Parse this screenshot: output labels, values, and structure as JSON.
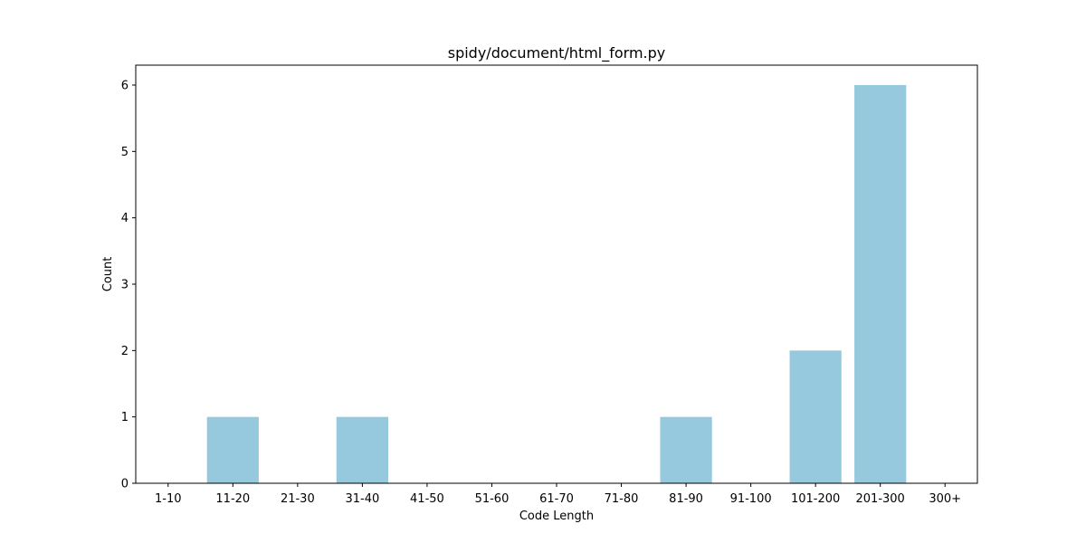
{
  "chart_data": {
    "type": "bar",
    "title": "spidy/document/html_form.py",
    "xlabel": "Code Length",
    "ylabel": "Count",
    "categories": [
      "1-10",
      "11-20",
      "21-30",
      "31-40",
      "41-50",
      "51-60",
      "61-70",
      "71-80",
      "81-90",
      "91-100",
      "101-200",
      "201-300",
      "300+"
    ],
    "values": [
      0,
      1,
      0,
      1,
      0,
      0,
      0,
      0,
      1,
      0,
      2,
      6,
      0
    ],
    "ylim": [
      0,
      6.3
    ],
    "yticks": [
      0,
      1,
      2,
      3,
      4,
      5,
      6
    ],
    "grid": false,
    "bar_color": "#96c9dd"
  }
}
